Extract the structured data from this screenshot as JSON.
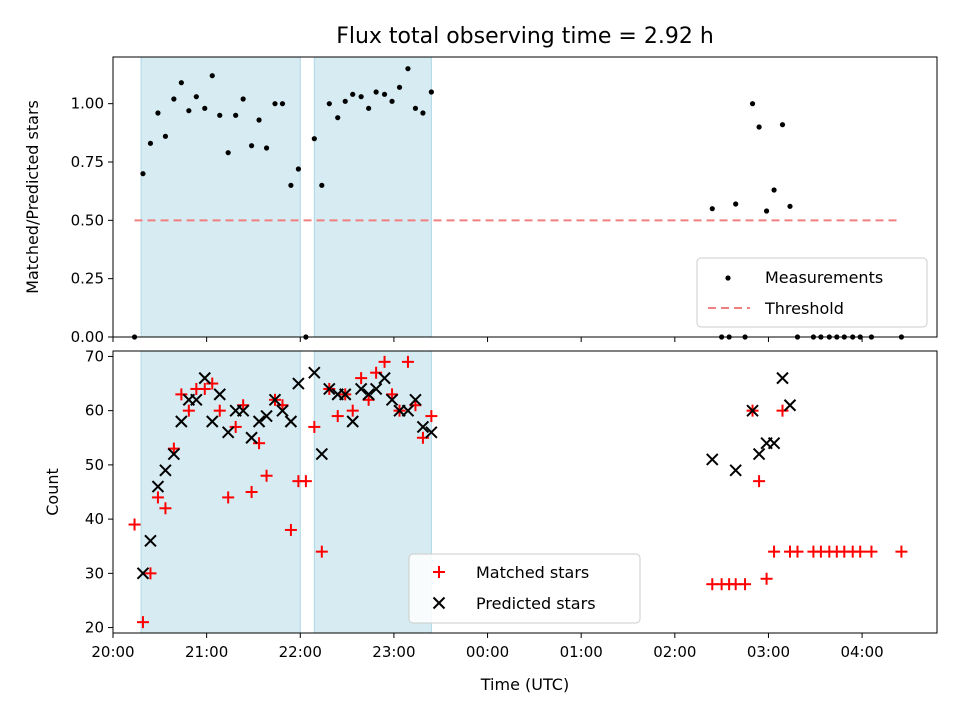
{
  "chart_data": [
    {
      "type": "scatter",
      "title": "Flux total observing time = 2.92 h",
      "xlabel": "",
      "ylabel": "Matched/Predicted stars",
      "xlim": [
        20.0,
        4.8
      ],
      "ylim": [
        0,
        1.2
      ],
      "yticks": [
        "0.00",
        "0.25",
        "0.50",
        "0.75",
        "1.00"
      ],
      "shaded_spans": [
        [
          20.3,
          22.0
        ],
        [
          22.15,
          23.4
        ]
      ],
      "threshold": {
        "name": "Threshold",
        "value": 0.5,
        "x_start": 20.23,
        "x_end": 28.42,
        "color": "#f08080"
      },
      "legend_position": "lower right",
      "series": [
        {
          "name": "Measurements",
          "color": "#000000",
          "x": [
            20.23,
            20.32,
            20.4,
            20.48,
            20.56,
            20.65,
            20.73,
            20.81,
            20.89,
            20.98,
            21.06,
            21.14,
            21.23,
            21.31,
            21.39,
            21.48,
            21.56,
            21.64,
            21.73,
            21.81,
            21.9,
            21.98,
            22.06,
            22.15,
            22.23,
            22.31,
            22.4,
            22.48,
            22.56,
            22.65,
            22.73,
            22.81,
            22.9,
            22.98,
            23.06,
            23.15,
            23.23,
            23.31,
            23.4,
            26.4,
            26.5,
            26.58,
            26.65,
            26.75,
            26.83,
            26.9,
            26.98,
            27.06,
            27.15,
            27.23,
            27.31,
            27.48,
            27.56,
            27.65,
            27.73,
            27.81,
            27.9,
            27.98,
            28.1,
            28.42
          ],
          "values": [
            0.0,
            0.7,
            0.83,
            0.96,
            0.86,
            1.02,
            1.09,
            0.97,
            1.03,
            0.98,
            1.12,
            0.95,
            0.79,
            0.95,
            1.02,
            0.82,
            0.93,
            0.81,
            1.0,
            1.0,
            0.65,
            0.72,
            0.0,
            0.85,
            0.65,
            1.0,
            0.94,
            1.01,
            1.04,
            1.03,
            0.98,
            1.05,
            1.04,
            1.01,
            1.07,
            1.15,
            0.98,
            0.96,
            1.05,
            0.55,
            0.0,
            0.0,
            0.57,
            0.0,
            1.0,
            0.9,
            0.54,
            0.63,
            0.91,
            0.56,
            0.0,
            0.0,
            0.0,
            0.0,
            0.0,
            0.0,
            0.0,
            0.0,
            0.0,
            0.0
          ]
        }
      ]
    },
    {
      "type": "scatter",
      "title": "",
      "xlabel": "Time (UTC)",
      "ylabel": "Count",
      "xlim": [
        20.0,
        4.8
      ],
      "ylim": [
        19,
        71
      ],
      "yticks": [
        20,
        30,
        40,
        50,
        60,
        70
      ],
      "xticks": [
        "20:00",
        "21:00",
        "22:00",
        "23:00",
        "00:00",
        "01:00",
        "02:00",
        "03:00",
        "04:00"
      ],
      "shaded_spans": [
        [
          20.3,
          22.0
        ],
        [
          22.15,
          23.4
        ]
      ],
      "legend_position": "lower center",
      "series": [
        {
          "name": "Matched stars",
          "color": "#ff0000",
          "x": [
            20.23,
            20.32,
            20.4,
            20.48,
            20.56,
            20.65,
            20.73,
            20.81,
            20.89,
            20.98,
            21.06,
            21.14,
            21.23,
            21.31,
            21.39,
            21.48,
            21.56,
            21.64,
            21.73,
            21.81,
            21.9,
            21.98,
            22.06,
            22.15,
            22.23,
            22.31,
            22.4,
            22.48,
            22.56,
            22.65,
            22.73,
            22.81,
            22.9,
            22.98,
            23.06,
            23.15,
            23.23,
            23.31,
            23.4,
            26.4,
            26.5,
            26.58,
            26.65,
            26.75,
            26.83,
            26.9,
            26.98,
            27.06,
            27.15,
            27.23,
            27.31,
            27.48,
            27.56,
            27.65,
            27.73,
            27.81,
            27.9,
            27.98,
            28.1,
            28.42
          ],
          "values": [
            39,
            21,
            30,
            44,
            42,
            53,
            63,
            60,
            64,
            64,
            65,
            60,
            44,
            57,
            61,
            45,
            54,
            48,
            62,
            61,
            38,
            47,
            47,
            57,
            34,
            64,
            59,
            63,
            60,
            66,
            62,
            67,
            69,
            63,
            60,
            69,
            61,
            55,
            59,
            28,
            28,
            28,
            28,
            28,
            60,
            47,
            29,
            34,
            60,
            34,
            34,
            34,
            34,
            34,
            34,
            34,
            34,
            34,
            34,
            34
          ]
        },
        {
          "name": "Predicted stars",
          "color": "#000000",
          "x": [
            20.32,
            20.4,
            20.48,
            20.56,
            20.65,
            20.73,
            20.81,
            20.89,
            20.98,
            21.06,
            21.14,
            21.23,
            21.31,
            21.39,
            21.48,
            21.56,
            21.64,
            21.73,
            21.81,
            21.9,
            21.98,
            22.15,
            22.23,
            22.31,
            22.4,
            22.48,
            22.56,
            22.65,
            22.73,
            22.81,
            22.9,
            22.98,
            23.06,
            23.15,
            23.23,
            23.31,
            23.4,
            26.4,
            26.65,
            26.83,
            26.9,
            26.98,
            27.06,
            27.15,
            27.23
          ],
          "values": [
            30,
            36,
            46,
            49,
            52,
            58,
            62,
            62,
            66,
            58,
            63,
            56,
            60,
            60,
            55,
            58,
            59,
            62,
            60,
            58,
            65,
            67,
            52,
            64,
            63,
            63,
            58,
            64,
            63,
            64,
            66,
            62,
            60,
            60,
            62,
            57,
            56,
            51,
            49,
            60,
            52,
            54,
            54,
            66,
            61
          ]
        }
      ]
    }
  ]
}
